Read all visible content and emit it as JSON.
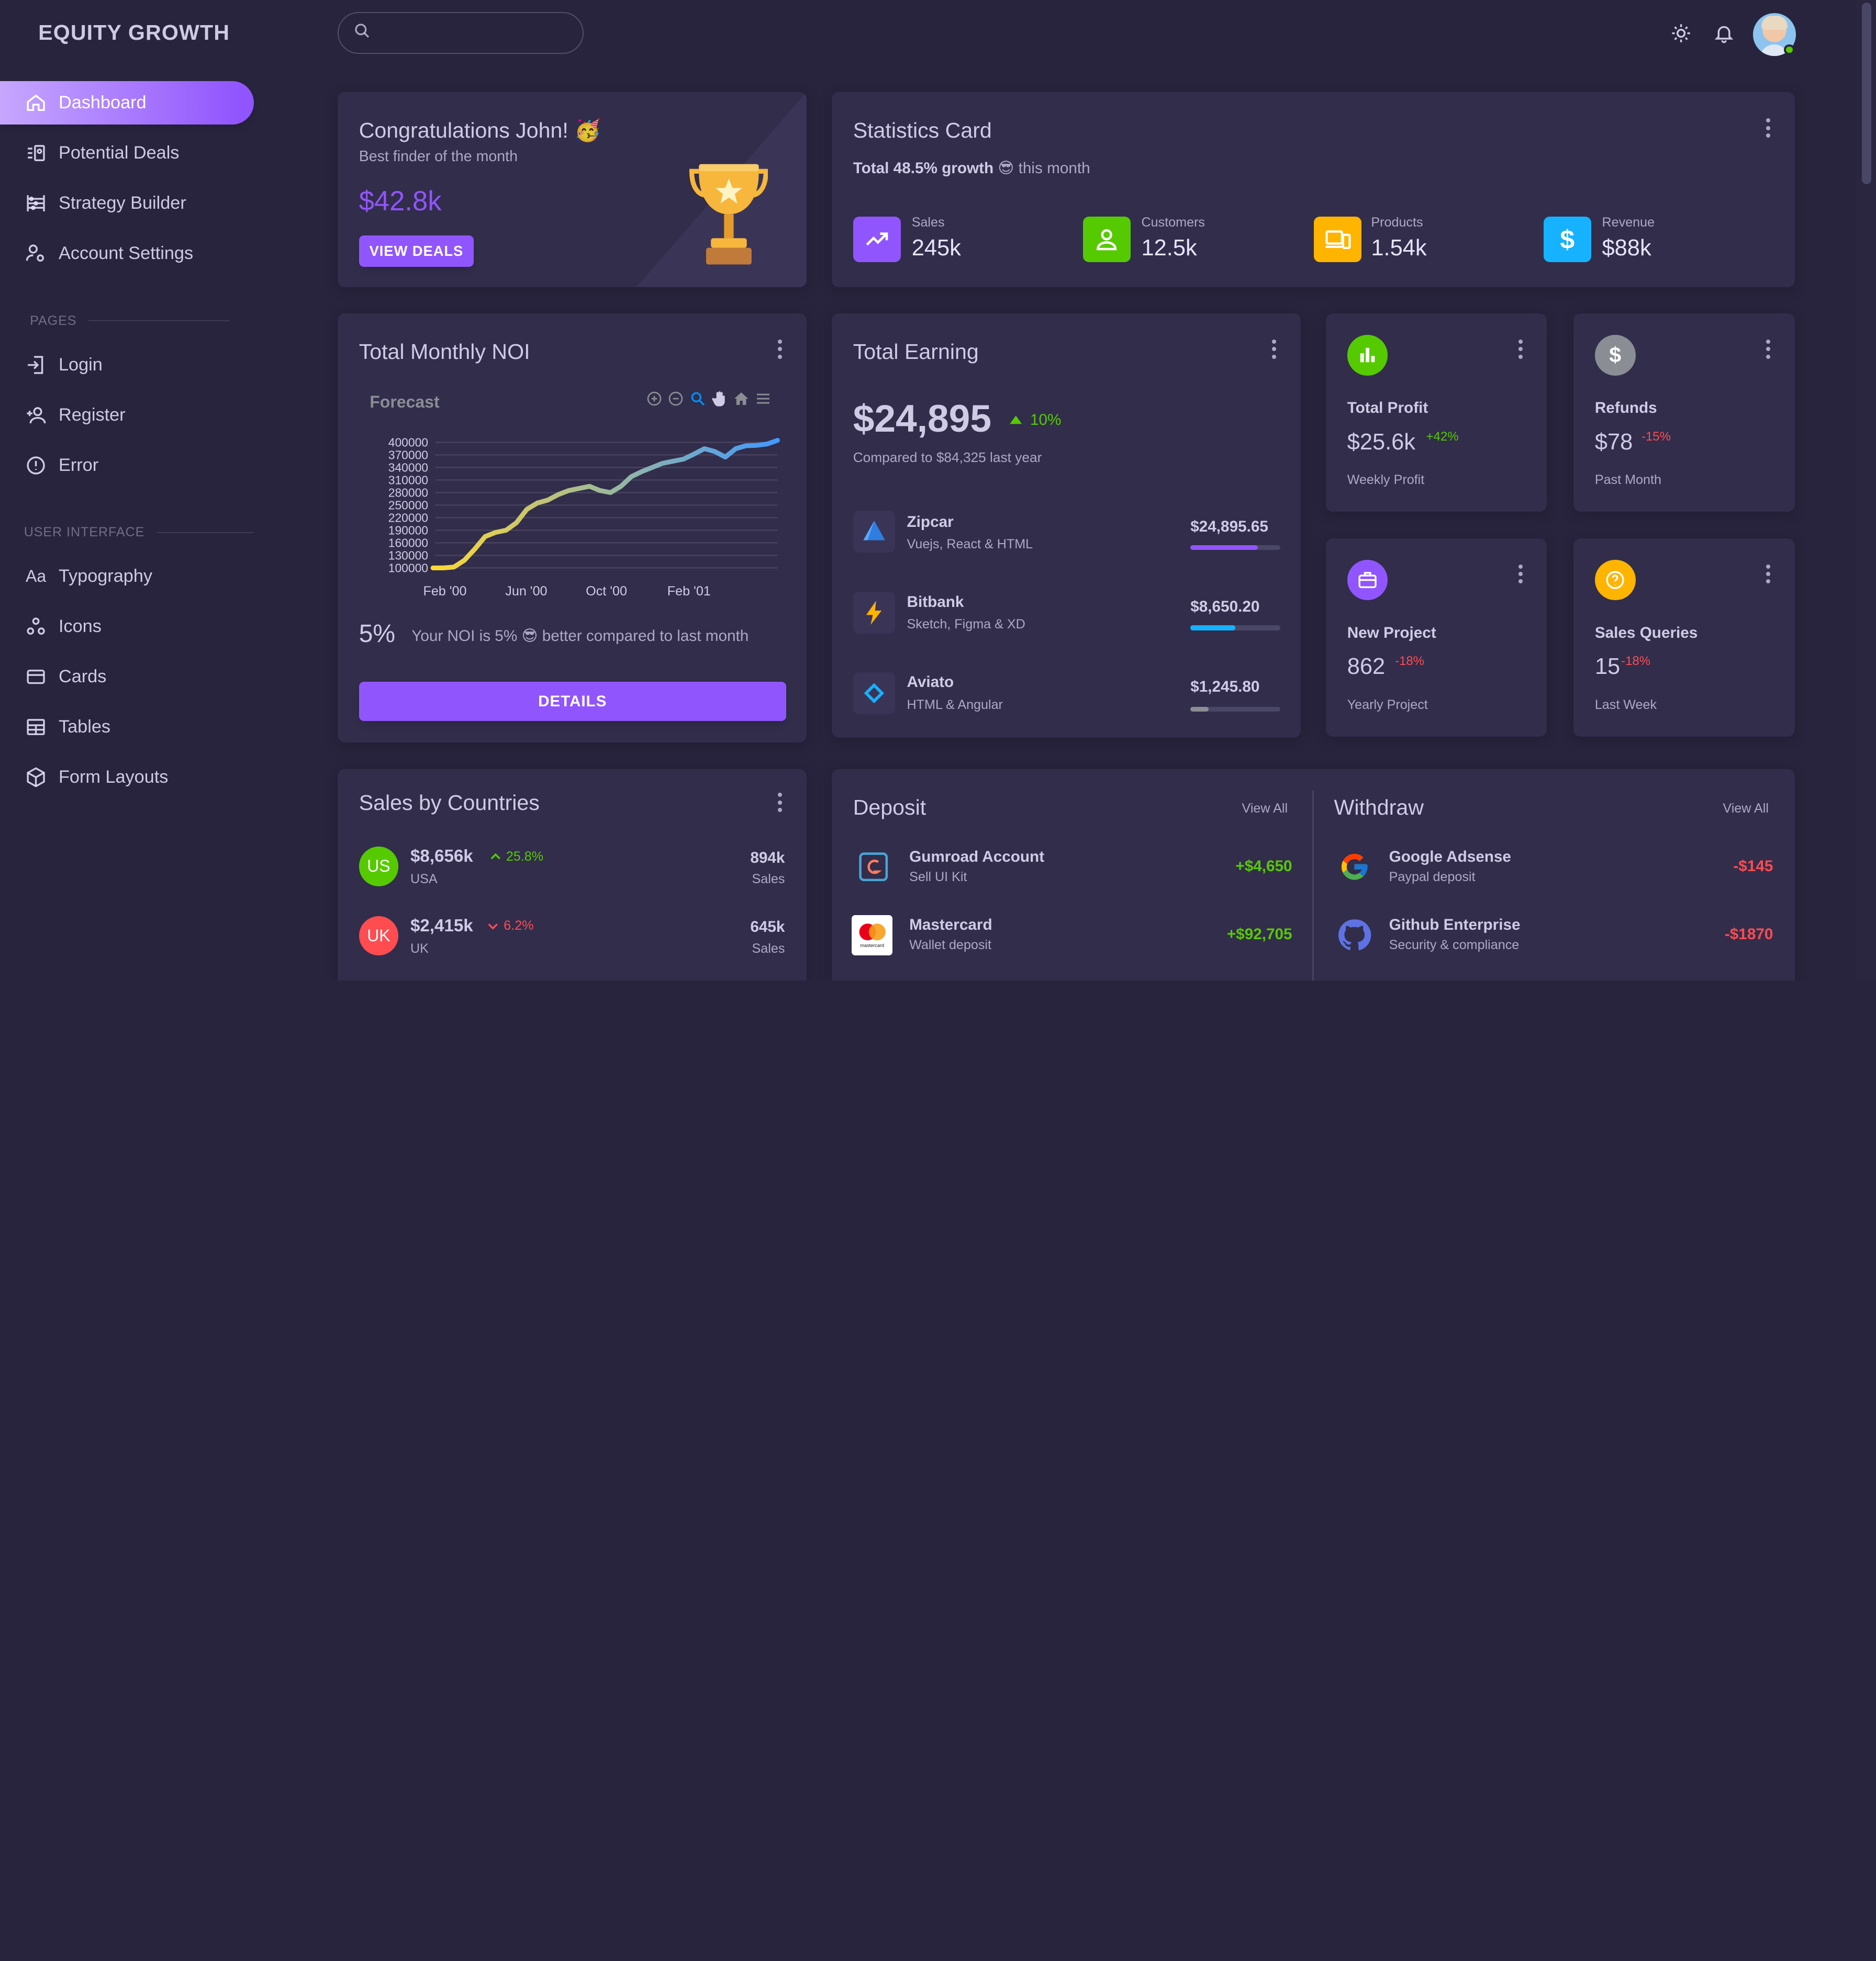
{
  "brand": "EQUITY GROWTH",
  "nav": {
    "items": [
      {
        "label": "Dashboard",
        "icon": "home-icon"
      },
      {
        "label": "Potential Deals",
        "icon": "account-box-icon"
      },
      {
        "label": "Strategy Builder",
        "icon": "abacus-icon"
      },
      {
        "label": "Account Settings",
        "icon": "account-cog-icon"
      }
    ],
    "pages_title": "PAGES",
    "pages": [
      {
        "label": "Login",
        "icon": "login-icon"
      },
      {
        "label": "Register",
        "icon": "account-plus-icon"
      },
      {
        "label": "Error",
        "icon": "alert-circle-icon"
      }
    ],
    "ui_title": "USER INTERFACE",
    "ui": [
      {
        "label": "Typography",
        "icon": "format-letter-case-icon"
      },
      {
        "label": "Icons",
        "icon": "google-circles-icon"
      },
      {
        "label": "Cards",
        "icon": "credit-card-icon"
      },
      {
        "label": "Tables",
        "icon": "table-icon"
      },
      {
        "label": "Form Layouts",
        "icon": "cube-icon"
      }
    ]
  },
  "search": {
    "placeholder": ""
  },
  "congrats": {
    "title": "Congratulations John! 🥳",
    "subtitle": "Best finder of the month",
    "amount": "$42.8k",
    "button": "VIEW DEALS"
  },
  "statistics": {
    "title": "Statistics Card",
    "growth_bold": "Total 48.5% growth",
    "growth_rest": "😎 this month",
    "items": [
      {
        "label": "Sales",
        "value": "245k",
        "color": "#9155fd",
        "icon": "trending-up-icon"
      },
      {
        "label": "Customers",
        "value": "12.5k",
        "color": "#56ca00",
        "icon": "account-outline-icon"
      },
      {
        "label": "Products",
        "value": "1.54k",
        "color": "#ffb400",
        "icon": "cellphone-link-icon"
      },
      {
        "label": "Revenue",
        "value": "$88k",
        "color": "#16b1ff",
        "icon": "currency-usd-icon"
      }
    ]
  },
  "noi": {
    "title": "Total Monthly NOI",
    "chart_title": "Forecast",
    "percent": "5%",
    "note": "Your NOI is 5% 😎 better compared to last month",
    "button": "DETAILS"
  },
  "chart_data": {
    "type": "line",
    "title": "Forecast",
    "xlabel": "",
    "ylabel": "",
    "y_ticks": [
      "400000",
      "370000",
      "340000",
      "310000",
      "280000",
      "250000",
      "220000",
      "190000",
      "160000",
      "130000",
      "100000"
    ],
    "x_ticks": [
      "Feb '00",
      "Jun '00",
      "Oct '00",
      "Feb '01"
    ],
    "ylim": [
      100000,
      400000
    ],
    "series": [
      {
        "values": [
          100000,
          100000,
          102000,
          118000,
          145000,
          175000,
          185000,
          190000,
          208000,
          240000,
          255000,
          262000,
          275000,
          285000,
          290000,
          295000,
          285000,
          280000,
          295000,
          318000,
          330000,
          340000,
          350000,
          355000,
          360000,
          372000,
          385000,
          378000,
          365000,
          385000,
          392000,
          393000,
          396000,
          405000
        ]
      }
    ]
  },
  "earning": {
    "title": "Total Earning",
    "amount": "$24,895",
    "change": "10%",
    "compare": "Compared to $84,325 last year",
    "items": [
      {
        "name": "Zipcar",
        "sub": "Vuejs, React & HTML",
        "amount": "$24,895.65",
        "progress": 0.75,
        "color": "#9155fd",
        "icon": "zipcar-logo-icon"
      },
      {
        "name": "Bitbank",
        "sub": "Sketch, Figma & XD",
        "amount": "$8,650.20",
        "progress": 0.5,
        "color": "#16b1ff",
        "icon": "bitbank-logo-icon"
      },
      {
        "name": "Aviato",
        "sub": "HTML & Angular",
        "amount": "$1,245.80",
        "progress": 0.2,
        "color": "#8a8d93",
        "icon": "aviato-logo-icon"
      }
    ]
  },
  "mini": [
    {
      "title": "Total Profit",
      "value": "$25.6k",
      "change": "+42%",
      "change_color": "#56ca00",
      "caption": "Weekly Profit",
      "color": "#56ca00",
      "icon": "poll-icon"
    },
    {
      "title": "Refunds",
      "value": "$78",
      "change": "-15%",
      "change_color": "#ff4c51",
      "caption": "Past Month",
      "color": "#8a8d93",
      "icon": "currency-usd-icon"
    },
    {
      "title": "New Project",
      "value": "862",
      "change": "-18%",
      "change_color": "#ff4c51",
      "caption": "Yearly Project",
      "color": "#9155fd",
      "icon": "briefcase-icon"
    },
    {
      "title": "Sales Queries",
      "value": "15",
      "change": "-18%",
      "change_color": "#ff4c51",
      "caption": "Last Week",
      "color": "#ffb400",
      "icon": "help-circle-icon"
    }
  ],
  "countries": {
    "title": "Sales by Countries",
    "items": [
      {
        "code": "US",
        "amount": "$8,656k",
        "change": "25.8%",
        "trend": "up",
        "name": "USA",
        "sales": "894k",
        "sales_label": "Sales",
        "color": "#56ca00"
      },
      {
        "code": "UK",
        "amount": "$2,415k",
        "change": "6.2%",
        "trend": "down",
        "name": "UK",
        "sales": "645k",
        "sales_label": "Sales",
        "color": "#ff4c51"
      }
    ]
  },
  "deposit": {
    "title": "Deposit",
    "view_all": "View All",
    "items": [
      {
        "name": "Gumroad Account",
        "sub": "Sell UI Kit",
        "amount": "+$4,650",
        "icon": "gumroad-logo-icon"
      },
      {
        "name": "Mastercard",
        "sub": "Wallet deposit",
        "amount": "+$92,705",
        "icon": "mastercard-logo-icon",
        "logo_text": "mastercard"
      }
    ]
  },
  "withdraw": {
    "title": "Withdraw",
    "view_all": "View All",
    "items": [
      {
        "name": "Google Adsense",
        "sub": "Paypal deposit",
        "amount": "-$145",
        "icon": "google-logo-icon"
      },
      {
        "name": "Github Enterprise",
        "sub": "Security & compliance",
        "amount": "-$1870",
        "icon": "github-logo-icon"
      }
    ]
  }
}
